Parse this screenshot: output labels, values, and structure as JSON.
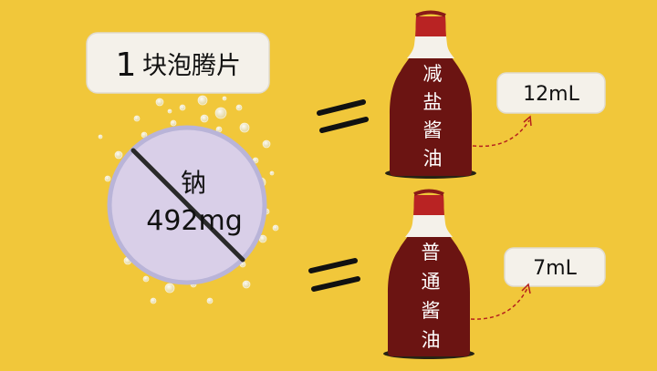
{
  "tablet_label": {
    "count": "1",
    "text": "块泡腾片"
  },
  "tablet": {
    "element": "钠",
    "amount": "492mg"
  },
  "bottles": [
    {
      "label_chars": [
        "减",
        "盐",
        "酱",
        "油"
      ],
      "volume": "12mL"
    },
    {
      "label_chars": [
        "普",
        "通",
        "酱",
        "油"
      ],
      "volume": "7mL"
    }
  ],
  "colors": {
    "background": "#f1c73a",
    "tablet_fill": "#d9cfe8",
    "bottle_body": "#6b1412",
    "bottle_cap": "#b92323",
    "arrow": "#b5201d"
  }
}
